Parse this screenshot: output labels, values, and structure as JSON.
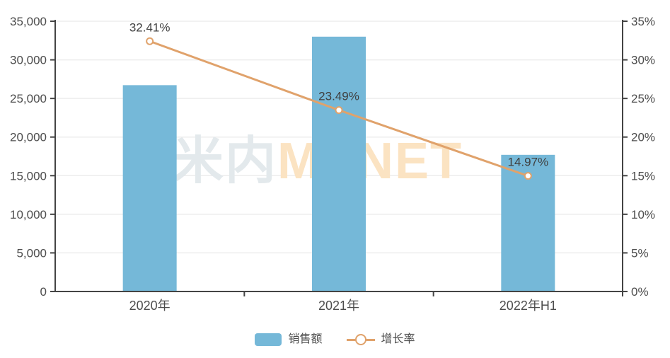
{
  "chart_data": {
    "type": "bar",
    "subtype": "bar+line dual-axis",
    "categories": [
      "2020年",
      "2021年",
      "2022年H1"
    ],
    "series": [
      {
        "name": "销售额",
        "type": "bar",
        "axis": "left",
        "values": [
          26720,
          33000,
          17700
        ]
      },
      {
        "name": "增长率",
        "type": "line",
        "axis": "right",
        "values": [
          32.41,
          23.49,
          14.97
        ],
        "point_labels": [
          "32.41%",
          "23.49%",
          "14.97%"
        ]
      }
    ],
    "left_axis": {
      "min": 0,
      "max": 35000,
      "step": 5000,
      "tick_labels": [
        "0",
        "5,000",
        "10,000",
        "15,000",
        "20,000",
        "25,000",
        "30,000",
        "35,000"
      ]
    },
    "right_axis": {
      "min": 0,
      "max": 35,
      "step": 5,
      "tick_labels": [
        "0%",
        "5%",
        "10%",
        "15%",
        "20%",
        "25%",
        "30%",
        "35%"
      ]
    },
    "title": "",
    "xlabel": "",
    "ylabel": "",
    "grid": true,
    "legend_position": "bottom"
  },
  "legend": {
    "items": [
      {
        "label": "销售额",
        "swatch": "bar"
      },
      {
        "label": "增长率",
        "swatch": "line"
      }
    ]
  },
  "watermark": {
    "cn": "米内",
    "en": "MENET"
  },
  "colors": {
    "bar": "#75b8d8",
    "line": "#e0a26b",
    "marker_fill": "#ffffff",
    "axis": "#444444",
    "grid": "#ededed",
    "text": "#4d4d4d",
    "point_label": "#3f3f3f",
    "watermark_cn": "#e3e9ec",
    "watermark_en": "#fbe3c2"
  }
}
